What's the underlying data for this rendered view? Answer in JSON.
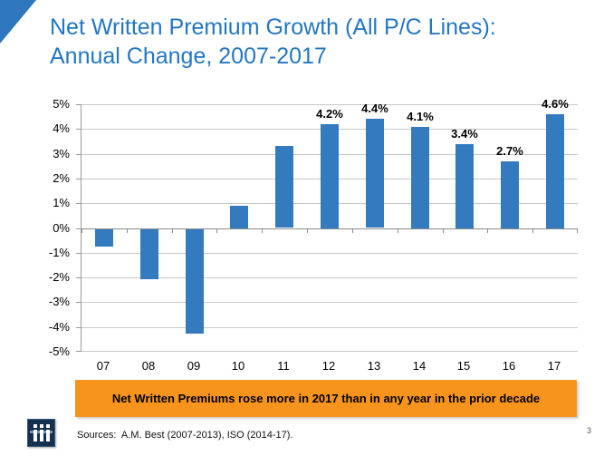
{
  "slide": {
    "title_line1": "Net Written Premium Growth (All P/C Lines):",
    "title_line2": "Annual Change, 2007-2017",
    "banner_text": "Net Written Premiums rose more in 2017 than in any year in the prior decade",
    "sources": "Sources:  A.M. Best (2007-2013), ISO (2014-17).",
    "page_number": "3",
    "logo_icon": "iii-insurance-information-institute-logo",
    "colors": {
      "title_blue": "#2477c4",
      "bar_blue": "#337abe",
      "banner_orange": "#f7941e",
      "triangle_blue": "#2e76be"
    }
  },
  "chart_data": {
    "type": "bar",
    "title": "Net Written Premium Growth (All P/C Lines): Annual Change, 2007-2017",
    "categories": [
      "07",
      "08",
      "09",
      "10",
      "11",
      "12",
      "13",
      "14",
      "15",
      "16",
      "17"
    ],
    "values": [
      -0.7,
      -2.0,
      -4.2,
      0.9,
      3.3,
      4.2,
      4.4,
      4.1,
      3.4,
      2.7,
      4.6
    ],
    "data_labels": [
      "",
      "",
      "",
      "",
      "",
      "4.2%",
      "4.4%",
      "4.1%",
      "3.4%",
      "2.7%",
      "4.6%"
    ],
    "xlabel": "",
    "ylabel": "",
    "ylim": [
      -5,
      5
    ],
    "ytick_step": 1,
    "ytick_suffix": "%",
    "grid": true,
    "legend": "none"
  }
}
